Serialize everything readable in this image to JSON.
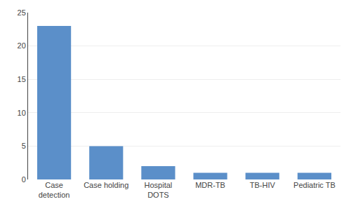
{
  "chart_data": {
    "type": "bar",
    "categories": [
      "Case\ndetection",
      "Case holding",
      "Hospital\nDOTS",
      "MDR-TB",
      "TB-HIV",
      "Pediatric TB"
    ],
    "values": [
      23,
      5,
      2,
      1,
      1,
      1
    ],
    "color": "#5b8fc9",
    "ylim": [
      0,
      25
    ],
    "yticks": [
      0,
      5,
      10,
      15,
      20,
      25
    ],
    "grid": true
  }
}
